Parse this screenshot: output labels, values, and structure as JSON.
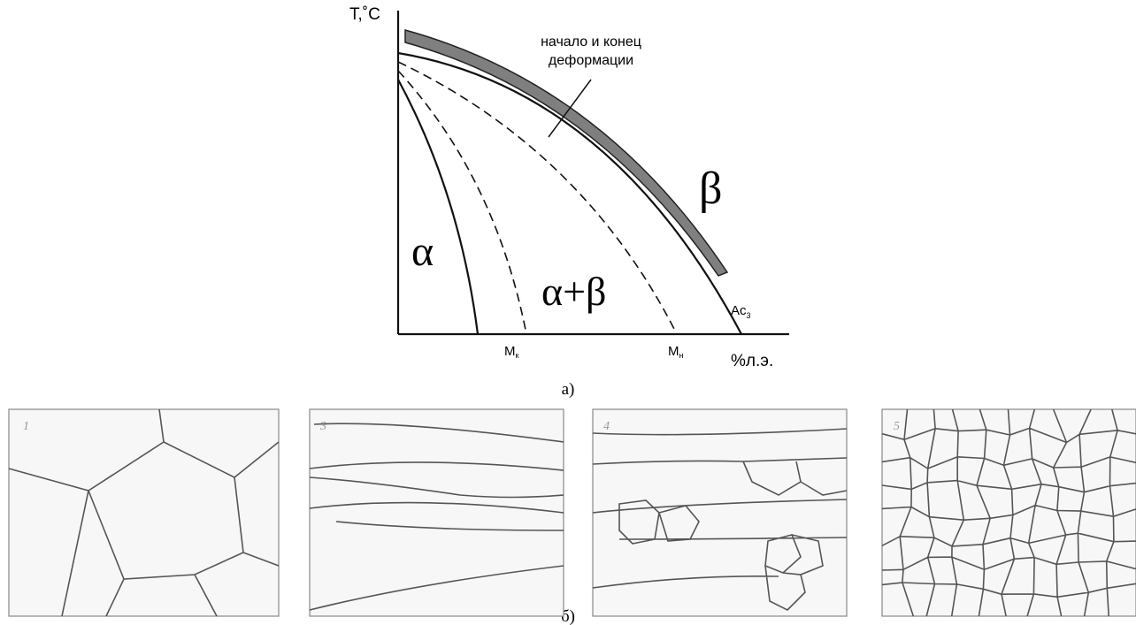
{
  "diagram": {
    "y_axis_label": "T,˚C",
    "x_axis_label": "%л.э.",
    "annotation": [
      "начало и конец",
      "деформации"
    ],
    "regions": {
      "beta": "β",
      "alpha": "α",
      "alpha_beta": "α+β"
    },
    "points": {
      "ac3": {
        "main": "Ac",
        "sub": "3"
      },
      "mk": {
        "main": "M",
        "sub": "к"
      },
      "mn": {
        "main": "M",
        "sub": "н"
      }
    },
    "caption_a": "а)",
    "caption_b": "б)",
    "micrographs": [
      "1",
      "3",
      "4",
      "5"
    ]
  }
}
